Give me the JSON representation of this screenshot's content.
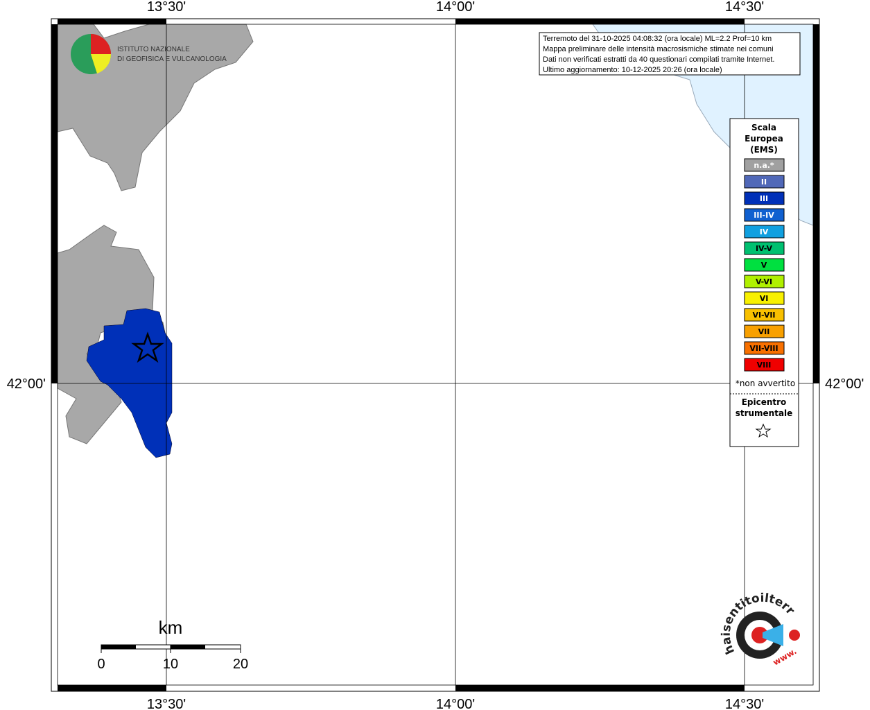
{
  "graticule": {
    "lon_labels": [
      "13°30'",
      "14°00'",
      "14°30'"
    ],
    "lat_labels": [
      "42°00'"
    ]
  },
  "info_box": {
    "lines": [
      "Terremoto del 31-10-2025 04:08:32 (ora locale) ML=2.2 Prof=10 km",
      "Mappa preliminare delle intensità macrosismiche stimate nei comuni",
      "Dati non verificati estratti da 40 questionari compilati tramite Internet.",
      "Ultimo aggiornamento: 10-12-2025 20:26 (ora locale)"
    ]
  },
  "logo": {
    "lines": [
      "ISTITUTO NAZIONALE",
      "DI GEOFISICA E VULCANOLOGIA"
    ]
  },
  "legend": {
    "title": [
      "Scala",
      "Europea",
      "(EMS)"
    ],
    "items": [
      {
        "label": "n.a.*",
        "color": "#a0a0a0"
      },
      {
        "label": "II",
        "color": "#5068b8"
      },
      {
        "label": "III",
        "color": "#0030b8"
      },
      {
        "label": "III-IV",
        "color": "#1060d0"
      },
      {
        "label": "IV",
        "color": "#10a0e0"
      },
      {
        "label": "IV-V",
        "color": "#00c070"
      },
      {
        "label": "V",
        "color": "#00e040"
      },
      {
        "label": "V-VI",
        "color": "#b0f000"
      },
      {
        "label": "VI",
        "color": "#f8f000"
      },
      {
        "label": "VI-VII",
        "color": "#f8c000"
      },
      {
        "label": "VII",
        "color": "#f8a000"
      },
      {
        "label": "VII-VIII",
        "color": "#f87000"
      },
      {
        "label": "VIII",
        "color": "#f00000"
      }
    ],
    "note": "*non avvertito",
    "epicenter": [
      "Epicentro",
      "strumentale"
    ]
  },
  "scale_bar": {
    "unit": "km",
    "labels": [
      "0",
      "10",
      "20"
    ]
  },
  "site_logo": {
    "text": "haisentitoilterremoto.it",
    "prefix": "www."
  }
}
